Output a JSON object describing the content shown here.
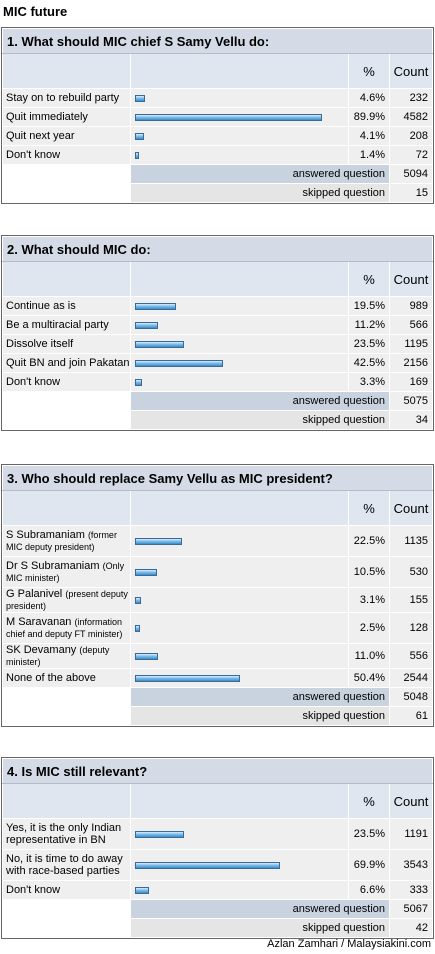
{
  "page_title": "MIC future",
  "credit": "Azlan Zamhari / Malaysiakini.com",
  "header": {
    "pct": "%",
    "count": "Count"
  },
  "summary_labels": {
    "answered": "answered question",
    "skipped": "skipped question"
  },
  "questions": [
    {
      "title": "1. What should MIC chief S Samy Vellu do:",
      "answers": [
        {
          "label": "Stay on to rebuild party",
          "pct": "4.6%",
          "count": "232",
          "fraction": 0.046
        },
        {
          "label": "Quit immediately",
          "pct": "89.9%",
          "count": "4582",
          "fraction": 0.899
        },
        {
          "label": "Quit next year",
          "pct": "4.1%",
          "count": "208",
          "fraction": 0.041
        },
        {
          "label": "Don't know",
          "pct": "1.4%",
          "count": "72",
          "fraction": 0.014
        }
      ],
      "answered": "5094",
      "skipped": "15"
    },
    {
      "title": "2. What should MIC do:",
      "answers": [
        {
          "label": "Continue as is",
          "pct": "19.5%",
          "count": "989",
          "fraction": 0.195
        },
        {
          "label": "Be a multiracial party",
          "pct": "11.2%",
          "count": "566",
          "fraction": 0.112
        },
        {
          "label": "Dissolve itself",
          "pct": "23.5%",
          "count": "1195",
          "fraction": 0.235
        },
        {
          "label": "Quit BN and join Pakatan",
          "pct": "42.5%",
          "count": "2156",
          "fraction": 0.425
        },
        {
          "label": "Don't know",
          "pct": "3.3%",
          "count": "169",
          "fraction": 0.033
        }
      ],
      "answered": "5075",
      "skipped": "34"
    },
    {
      "title": "3. Who should replace Samy Vellu as MIC president?",
      "answers": [
        {
          "label": "S Subramaniam",
          "note": "(former MIC deputy president)",
          "pct": "22.5%",
          "count": "1135",
          "fraction": 0.225
        },
        {
          "label": "Dr S Subramaniam",
          "note": "(Only MIC minister)",
          "pct": "10.5%",
          "count": "530",
          "fraction": 0.105
        },
        {
          "label": "G Palanivel",
          "note": "(present deputy president)",
          "pct": "3.1%",
          "count": "155",
          "fraction": 0.031
        },
        {
          "label": "M Saravanan",
          "note": "(information chief and deputy FT minister)",
          "pct": "2.5%",
          "count": "128",
          "fraction": 0.025
        },
        {
          "label": "SK Devamany",
          "note": "(deputy minister)",
          "pct": "11.0%",
          "count": "556",
          "fraction": 0.11
        },
        {
          "label": "None of the above",
          "pct": "50.4%",
          "count": "2544",
          "fraction": 0.504
        }
      ],
      "answered": "5048",
      "skipped": "61"
    },
    {
      "title": "4. Is MIC still relevant?",
      "answers": [
        {
          "label": "Yes, it is the only Indian representative in BN",
          "pct": "23.5%",
          "count": "1191",
          "fraction": 0.235
        },
        {
          "label": "No, it is time to do away with race-based parties",
          "pct": "69.9%",
          "count": "3543",
          "fraction": 0.699
        },
        {
          "label": "Don't know",
          "pct": "6.6%",
          "count": "333",
          "fraction": 0.066
        }
      ],
      "answered": "5067",
      "skipped": "42"
    }
  ]
}
